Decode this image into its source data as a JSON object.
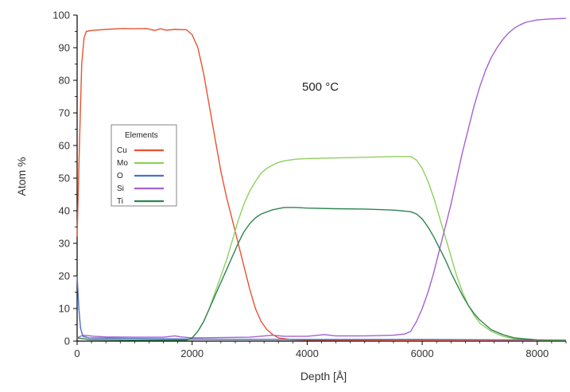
{
  "chart_data": {
    "type": "line",
    "title": "",
    "xlabel": "Depth [Å]",
    "ylabel": "Atom %",
    "xlim": [
      0,
      8500
    ],
    "ylim": [
      0,
      100
    ],
    "x_ticks": [
      0,
      2000,
      4000,
      6000,
      8000
    ],
    "y_ticks": [
      0,
      10,
      20,
      30,
      40,
      50,
      60,
      70,
      80,
      90,
      100
    ],
    "x_tick_labels": [
      "0",
      "2000",
      "4000",
      "6000",
      "8000"
    ],
    "y_tick_labels": [
      "0",
      "10",
      "20",
      "30",
      "40",
      "50",
      "60",
      "70",
      "80",
      "90",
      "100"
    ],
    "annotation": "500 °C",
    "grid": false,
    "legend": {
      "title": "Elements",
      "placement": "left"
    },
    "series": [
      {
        "name": "Cu",
        "color": "#e8522f",
        "points": [
          [
            0,
            32
          ],
          [
            40,
            60
          ],
          [
            80,
            85
          ],
          [
            120,
            93
          ],
          [
            160,
            95
          ],
          [
            250,
            95.3
          ],
          [
            500,
            95.6
          ],
          [
            800,
            95.9
          ],
          [
            1000,
            95.8
          ],
          [
            1200,
            95.9
          ],
          [
            1350,
            95.3
          ],
          [
            1450,
            95.8
          ],
          [
            1550,
            95.4
          ],
          [
            1700,
            95.6
          ],
          [
            1900,
            95.5
          ],
          [
            2000,
            94
          ],
          [
            2100,
            90
          ],
          [
            2200,
            82
          ],
          [
            2300,
            72
          ],
          [
            2400,
            62
          ],
          [
            2500,
            52
          ],
          [
            2600,
            44
          ],
          [
            2700,
            37
          ],
          [
            2800,
            30
          ],
          [
            2900,
            23
          ],
          [
            3000,
            16
          ],
          [
            3100,
            10
          ],
          [
            3200,
            6
          ],
          [
            3300,
            3.5
          ],
          [
            3400,
            2
          ],
          [
            3500,
            1
          ],
          [
            3700,
            0.5
          ],
          [
            4000,
            0.3
          ],
          [
            6000,
            0.2
          ],
          [
            8500,
            0.2
          ]
        ]
      },
      {
        "name": "Mo",
        "color": "#8fcf5e",
        "points": [
          [
            0,
            1
          ],
          [
            200,
            0.5
          ],
          [
            1000,
            0.3
          ],
          [
            1900,
            0.3
          ],
          [
            2000,
            1
          ],
          [
            2100,
            3
          ],
          [
            2200,
            6
          ],
          [
            2300,
            10
          ],
          [
            2400,
            15
          ],
          [
            2500,
            20
          ],
          [
            2600,
            25
          ],
          [
            2700,
            31
          ],
          [
            2800,
            37
          ],
          [
            2900,
            42
          ],
          [
            3000,
            46
          ],
          [
            3100,
            49
          ],
          [
            3200,
            51.5
          ],
          [
            3300,
            53
          ],
          [
            3400,
            54
          ],
          [
            3500,
            54.8
          ],
          [
            3600,
            55.3
          ],
          [
            3800,
            55.8
          ],
          [
            4000,
            56
          ],
          [
            4500,
            56.2
          ],
          [
            5000,
            56.4
          ],
          [
            5500,
            56.6
          ],
          [
            5800,
            56.6
          ],
          [
            5900,
            55.5
          ],
          [
            6000,
            53
          ],
          [
            6100,
            49
          ],
          [
            6200,
            44
          ],
          [
            6300,
            38
          ],
          [
            6400,
            32
          ],
          [
            6500,
            26
          ],
          [
            6600,
            20
          ],
          [
            6700,
            15
          ],
          [
            6800,
            11
          ],
          [
            6900,
            8
          ],
          [
            7000,
            5.5
          ],
          [
            7200,
            3
          ],
          [
            7400,
            1.5
          ],
          [
            7600,
            0.7
          ],
          [
            8000,
            0.3
          ],
          [
            8500,
            0.2
          ]
        ]
      },
      {
        "name": "O",
        "color": "#4a6fc7",
        "points": [
          [
            0,
            20
          ],
          [
            30,
            10
          ],
          [
            60,
            4
          ],
          [
            100,
            1.5
          ],
          [
            200,
            1
          ],
          [
            1000,
            0.8
          ],
          [
            2000,
            0.6
          ],
          [
            4000,
            0.5
          ],
          [
            6000,
            0.5
          ],
          [
            8500,
            0.3
          ]
        ]
      },
      {
        "name": "Si",
        "color": "#a561d0",
        "points": [
          [
            0,
            1
          ],
          [
            100,
            1.8
          ],
          [
            300,
            1.5
          ],
          [
            500,
            1.3
          ],
          [
            1000,
            1.2
          ],
          [
            1500,
            1.2
          ],
          [
            1700,
            1.6
          ],
          [
            1800,
            1.3
          ],
          [
            2000,
            1
          ],
          [
            3000,
            1.2
          ],
          [
            3400,
            1.8
          ],
          [
            3600,
            1.5
          ],
          [
            4000,
            1.5
          ],
          [
            4300,
            2
          ],
          [
            4500,
            1.6
          ],
          [
            5000,
            1.6
          ],
          [
            5500,
            1.8
          ],
          [
            5700,
            2.2
          ],
          [
            5800,
            3
          ],
          [
            5900,
            6
          ],
          [
            6000,
            10
          ],
          [
            6100,
            15
          ],
          [
            6200,
            21
          ],
          [
            6300,
            28
          ],
          [
            6400,
            35
          ],
          [
            6500,
            42
          ],
          [
            6600,
            50
          ],
          [
            6700,
            58
          ],
          [
            6800,
            65
          ],
          [
            6900,
            72
          ],
          [
            7000,
            78
          ],
          [
            7100,
            83
          ],
          [
            7200,
            87
          ],
          [
            7300,
            90
          ],
          [
            7400,
            92.5
          ],
          [
            7500,
            94.5
          ],
          [
            7600,
            96
          ],
          [
            7700,
            97
          ],
          [
            7800,
            97.8
          ],
          [
            8000,
            98.5
          ],
          [
            8200,
            98.8
          ],
          [
            8500,
            99
          ]
        ]
      },
      {
        "name": "Ti",
        "color": "#2e8451",
        "points": [
          [
            0,
            1
          ],
          [
            200,
            0.5
          ],
          [
            1000,
            0.3
          ],
          [
            1900,
            0.3
          ],
          [
            2000,
            1
          ],
          [
            2100,
            3
          ],
          [
            2200,
            6
          ],
          [
            2300,
            10
          ],
          [
            2400,
            14
          ],
          [
            2500,
            18
          ],
          [
            2600,
            22
          ],
          [
            2700,
            26
          ],
          [
            2800,
            30
          ],
          [
            2900,
            33.5
          ],
          [
            3000,
            36
          ],
          [
            3100,
            37.8
          ],
          [
            3200,
            39
          ],
          [
            3400,
            40.3
          ],
          [
            3600,
            41
          ],
          [
            3800,
            41
          ],
          [
            4000,
            40.8
          ],
          [
            4500,
            40.6
          ],
          [
            5000,
            40.5
          ],
          [
            5500,
            40.2
          ],
          [
            5800,
            39.7
          ],
          [
            5900,
            39
          ],
          [
            6000,
            37.5
          ],
          [
            6100,
            35
          ],
          [
            6200,
            32
          ],
          [
            6300,
            28.5
          ],
          [
            6400,
            25
          ],
          [
            6500,
            21
          ],
          [
            6600,
            17.5
          ],
          [
            6700,
            14
          ],
          [
            6800,
            11
          ],
          [
            6900,
            8.5
          ],
          [
            7000,
            6.5
          ],
          [
            7200,
            3.5
          ],
          [
            7400,
            2
          ],
          [
            7600,
            1
          ],
          [
            8000,
            0.4
          ],
          [
            8500,
            0.2
          ]
        ]
      }
    ]
  }
}
